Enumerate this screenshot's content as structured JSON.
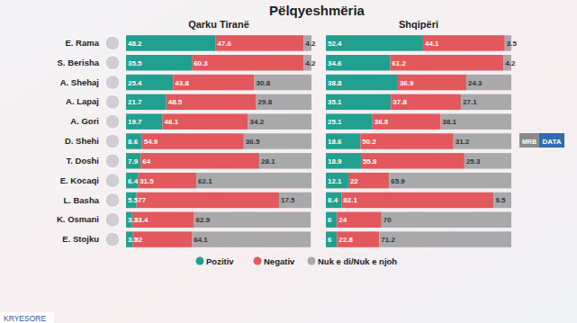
{
  "title": "Pëlqyeshmëria",
  "annotations": [
    "KRYESORE",
    "MRB",
    "DATA"
  ],
  "chart_data": [
    {
      "type": "bar",
      "title": "Qarku Tiranë",
      "orientation": "horizontal",
      "stacked": true,
      "data_labels": true,
      "tick_labels": false,
      "legend": "bottom",
      "categories": [
        "E. Rama",
        "S. Berisha",
        "A. Shehaj",
        "A. Lapaj",
        "A. Gori",
        "D. Shehi",
        "T. Doshi",
        "E. Kocaqi",
        "L. Basha",
        "K. Osmani",
        "E. Stojku"
      ],
      "xlim": [
        0,
        100
      ],
      "series": [
        {
          "name": "Pozitiv",
          "color": "#22a08f",
          "values": [
            48.2,
            35.5,
            25.4,
            21.7,
            19.7,
            8.6,
            7.9,
            6.4,
            5.5,
            3.3,
            3.5
          ]
        },
        {
          "name": "Negativ",
          "color": "#e2585d",
          "values": [
            47.6,
            60.3,
            43.8,
            48.5,
            46.1,
            54.9,
            64,
            31.5,
            77,
            33.4,
            32
          ]
        },
        {
          "name": "Nuk e di/Nuk e njoh",
          "color": "#a9a9ab",
          "values": [
            4.2,
            4.2,
            30.8,
            29.8,
            34.2,
            36.5,
            28.1,
            62.1,
            17.5,
            62.9,
            64.1
          ]
        }
      ]
    },
    {
      "type": "bar",
      "title": "Shqipëri",
      "orientation": "horizontal",
      "stacked": true,
      "data_labels": true,
      "tick_labels": false,
      "categories": [
        null,
        null,
        null,
        null,
        null,
        null,
        null,
        null,
        null,
        null,
        null
      ],
      "xlim": [
        0,
        100
      ],
      "series": [
        {
          "color": "#22a08f",
          "values": [
            52.4,
            34.6,
            38.8,
            35.1,
            25.1,
            18.6,
            18.9,
            12.1,
            8.4,
            6,
            6
          ]
        },
        {
          "color": "#e2585d",
          "values": [
            44.1,
            61.2,
            36.9,
            37.8,
            36.8,
            50.2,
            55.8,
            22,
            82.1,
            24,
            22.8
          ]
        },
        {
          "color": "#a9a9ab",
          "values": [
            3.5,
            4.2,
            24.3,
            27.1,
            38.1,
            31.2,
            25.3,
            65.9,
            9.5,
            70,
            71.2
          ]
        }
      ]
    }
  ]
}
